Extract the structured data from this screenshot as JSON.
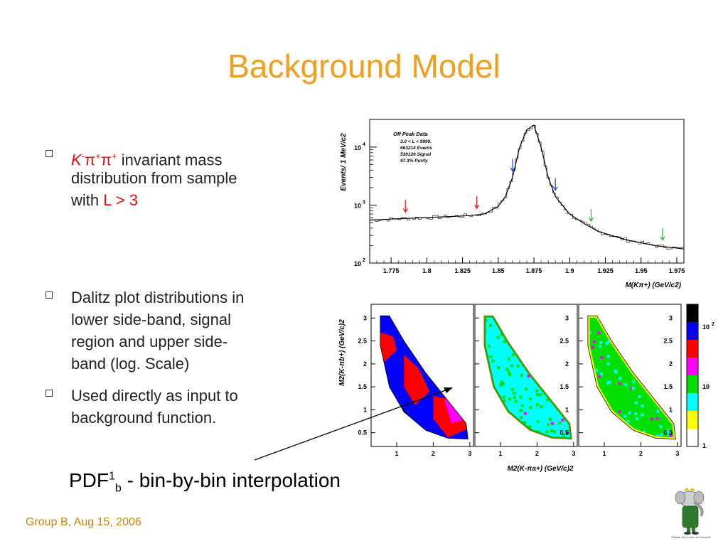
{
  "slide": {
    "title": "Background Model",
    "bullet1": {
      "particle_K": "K",
      "particle_minus": "-",
      "particle_pi": "π",
      "particle_plus": "+",
      "line1_rest": " invariant mass",
      "line2": "distribution from sample",
      "line3_prefix": "with ",
      "line3_cut": "L > 3"
    },
    "bullet2": [
      "Dalitz plot distributions in",
      "lower side-band, signal",
      "region and upper side-",
      "band (log. Scale)"
    ],
    "bullet3": [
      "Used directly as input to",
      "background function."
    ],
    "pdf_caption": {
      "main": "PDF",
      "sup": "1",
      "sub": "b",
      "rest": " - bin-by-bin interpolation"
    },
    "footer": "Group B, Aug 15, 2006",
    "mascot_caption": "©Babar @ Laurent de Brunhoff"
  },
  "chart_data": [
    {
      "type": "line",
      "title": "",
      "xlabel": "M(Kπ+)  (GeV/c2)",
      "ylabel": "Events/ 1 MeV/c2",
      "y_scale": "log",
      "xlim": [
        1.76,
        1.98
      ],
      "ylim": [
        100,
        30000
      ],
      "x_ticks": [
        1.775,
        1.8,
        1.825,
        1.85,
        1.875,
        1.9,
        1.925,
        1.95,
        1.975
      ],
      "y_ticks": [
        100,
        1000,
        10000
      ],
      "x_tick_labels": [
        "1.775",
        "1.8",
        "1.825",
        "1.85",
        "1.875",
        "1.9",
        "1.925",
        "1.95",
        "1.975"
      ],
      "y_tick_labels": [
        {
          "base": "10",
          "exp": "2"
        },
        {
          "base": "10",
          "exp": "3"
        },
        {
          "base": "10",
          "exp": "4"
        }
      ],
      "info_box": [
        "Off Peak Data",
        "3.0 < L < 9999.",
        "663214 Events",
        "530126 Signal",
        "97.3% Purity"
      ],
      "series": [
        {
          "x": [
            1.76,
            1.78,
            1.8,
            1.82,
            1.83,
            1.84,
            1.85,
            1.855,
            1.86,
            1.865,
            1.87,
            1.875,
            1.88,
            1.885,
            1.89,
            1.9,
            1.91,
            1.92,
            1.94,
            1.96,
            1.98
          ],
          "y": [
            550,
            580,
            610,
            640,
            660,
            700,
            950,
            1400,
            3000,
            10000,
            20000,
            24000,
            10000,
            3000,
            1400,
            700,
            480,
            350,
            250,
            200,
            175
          ]
        }
      ],
      "arrows": [
        {
          "x": 1.785,
          "color": "#e01010"
        },
        {
          "x": 1.835,
          "color": "#e01010"
        },
        {
          "x": 1.86,
          "color": "#2244dd"
        },
        {
          "x": 1.89,
          "color": "#2244dd"
        },
        {
          "x": 1.915,
          "color": "#20c020"
        },
        {
          "x": 1.965,
          "color": "#20c020"
        }
      ]
    },
    {
      "type": "heatmap",
      "panels": [
        "lower side-band",
        "signal region",
        "upper side-band"
      ],
      "xlabel": "M2(K-πa+)  (GeV/c)2",
      "ylabel": "M2(K-πb+)  (GeV/c)2",
      "xlim": [
        0.3,
        3.1
      ],
      "ylim": [
        0.2,
        3.3
      ],
      "x_tick_labels": [
        "1",
        "2",
        "3"
      ],
      "y_tick_labels": [
        "0.5",
        "1",
        "1.5",
        "2",
        "2.5",
        "3"
      ],
      "z_scale": "log",
      "colorbar_labels": [
        {
          "base": "10",
          "exp": "2"
        },
        {
          "base": "10",
          "exp": ""
        },
        {
          "base": "1",
          "exp": ""
        }
      ],
      "colorbar_colors": [
        "#000000",
        "#0000ff",
        "#ff0000",
        "#ff00ff",
        "#00dd00",
        "#00ffff",
        "#ffff00",
        "#ffffff"
      ]
    }
  ]
}
